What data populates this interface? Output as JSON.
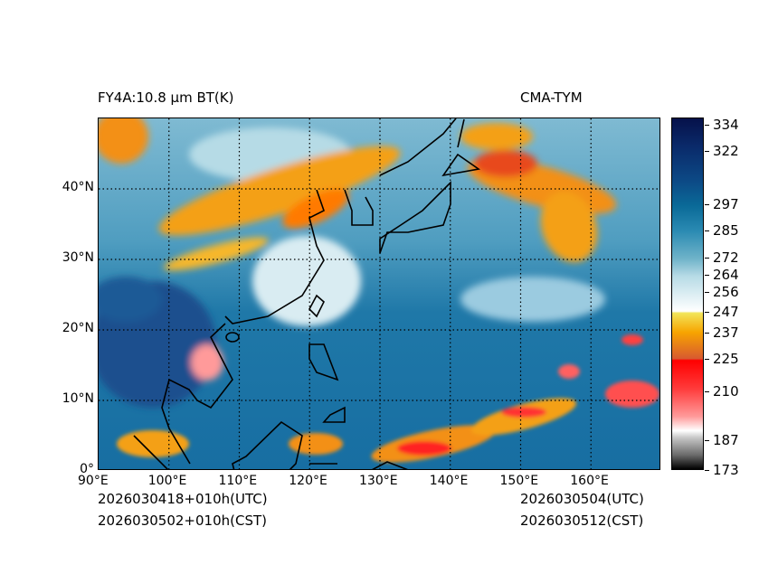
{
  "header": {
    "title": "FY4A:10.8 µm BT(K)",
    "source": "CMA-TYM"
  },
  "footer": {
    "init_utc": "2026030418+010h(UTC)",
    "init_cst": "2026030502+010h(CST)",
    "valid_utc": "2026030504(UTC)",
    "valid_cst": "2026030512(CST)"
  },
  "map": {
    "lon_labels": [
      "90°E",
      "100°E",
      "110°E",
      "120°E",
      "130°E",
      "140°E",
      "150°E",
      "160°E"
    ],
    "lon_values": [
      90,
      100,
      110,
      120,
      130,
      140,
      150,
      160
    ],
    "lat_labels": [
      "0°",
      "10°N",
      "20°N",
      "30°N",
      "40°N"
    ],
    "lat_values": [
      0,
      10,
      20,
      30,
      40
    ],
    "lon_range": [
      90,
      170
    ],
    "lat_range": [
      0,
      50
    ]
  },
  "colorbar": {
    "unit": "K",
    "ticks": [
      "334",
      "322",
      "297",
      "285",
      "272",
      "264",
      "256",
      "247",
      "237",
      "225",
      "210",
      "187",
      "173"
    ]
  }
}
